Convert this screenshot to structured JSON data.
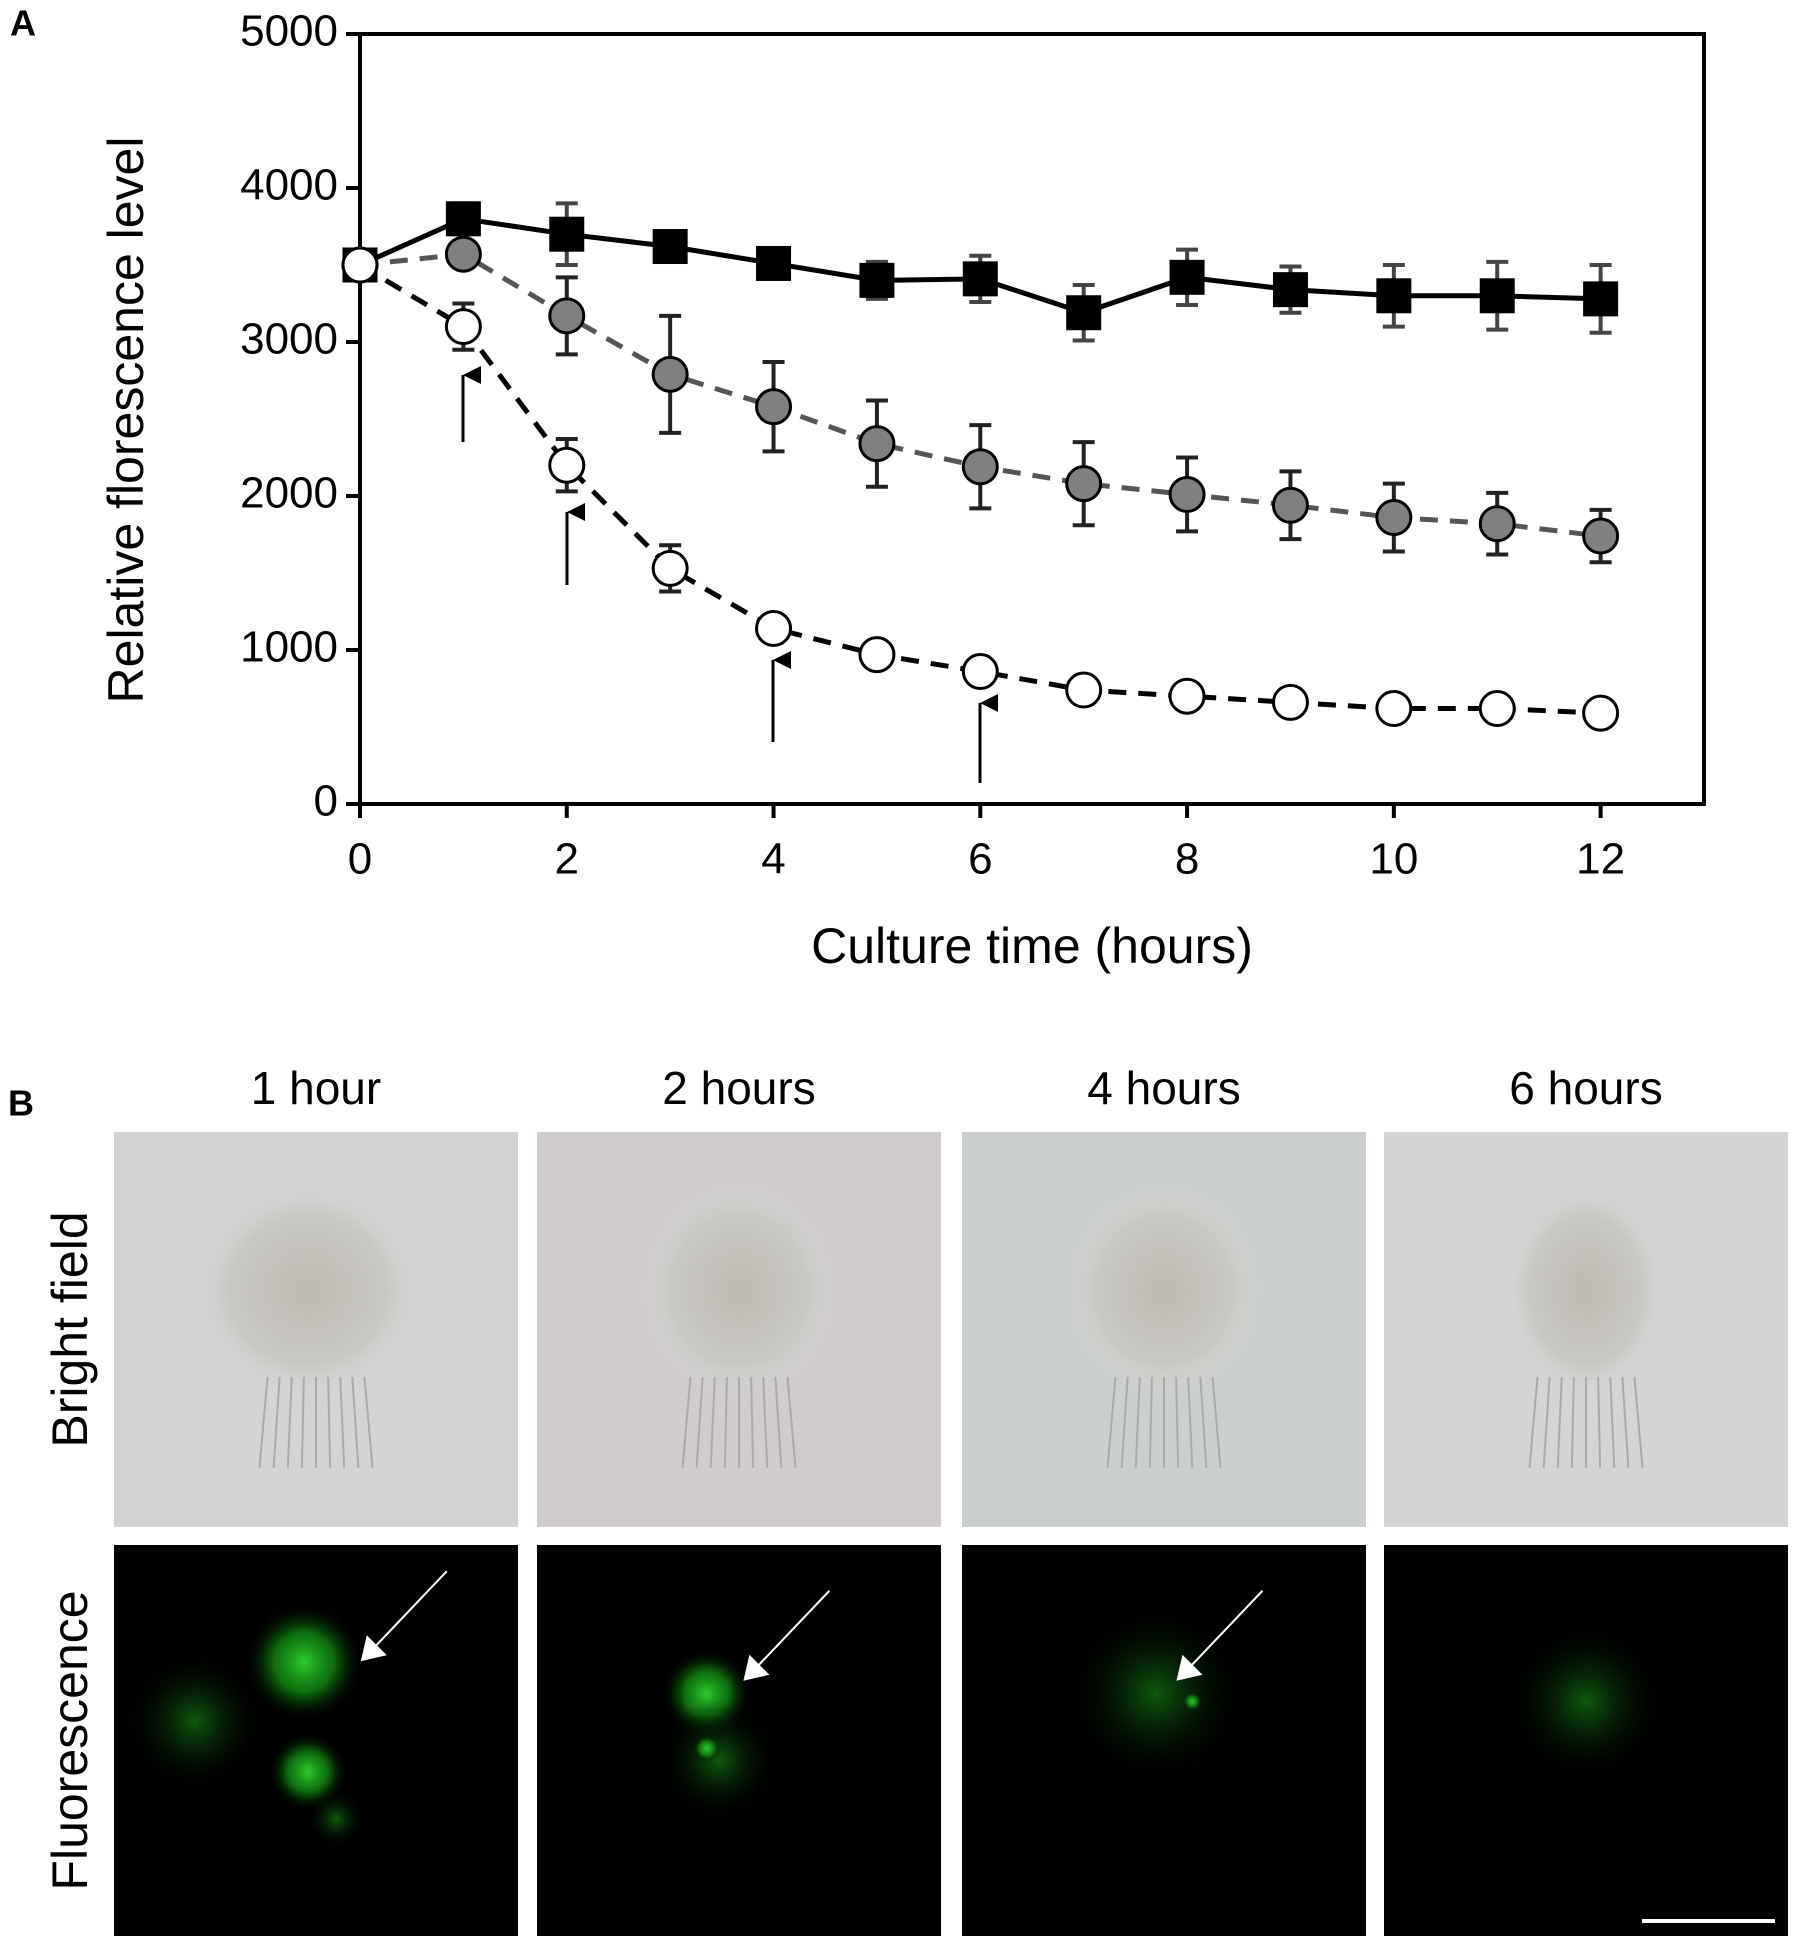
{
  "panel_labels": [
    "A",
    "B"
  ],
  "chart_data": {
    "type": "line",
    "x_label": "Culture time (hours)",
    "y_label": "Relative florescence level",
    "x": [
      0,
      1,
      2,
      3,
      4,
      5,
      6,
      7,
      8,
      9,
      10,
      11,
      12
    ],
    "xlim": [
      0,
      13
    ],
    "xticks": [
      0,
      2,
      4,
      6,
      8,
      10,
      12
    ],
    "ylim": [
      0,
      5000
    ],
    "yticks": [
      0,
      1000,
      2000,
      3000,
      4000,
      5000
    ],
    "grid": false,
    "series": [
      {
        "color": "#000000",
        "marker": "square",
        "marker_fill": "#000000",
        "line_style": "solid",
        "values": [
          3500,
          3800,
          3700,
          3620,
          3510,
          3400,
          3410,
          3190,
          3420,
          3340,
          3300,
          3300,
          3280
        ],
        "errors": [
          null,
          100,
          200,
          80,
          100,
          120,
          150,
          180,
          180,
          150,
          200,
          220,
          220
        ]
      },
      {
        "color": "#555555",
        "marker": "circle",
        "marker_fill": "#808080",
        "line_style": "dashed",
        "values": [
          3500,
          3570,
          3170,
          2790,
          2580,
          2340,
          2190,
          2080,
          2010,
          1940,
          1860,
          1820,
          1740
        ],
        "errors": [
          null,
          60,
          250,
          380,
          290,
          280,
          270,
          270,
          240,
          220,
          220,
          200,
          170
        ]
      },
      {
        "color": "#000000",
        "marker": "circle",
        "marker_fill": "#ffffff",
        "line_style": "dashed",
        "values": [
          3500,
          3100,
          2200,
          1530,
          1140,
          970,
          860,
          740,
          700,
          660,
          620,
          620,
          590
        ],
        "errors": [
          null,
          150,
          170,
          150,
          null,
          null,
          null,
          null,
          null,
          null,
          null,
          null,
          null
        ]
      }
    ]
  },
  "images": {
    "columns": [
      "1 hour",
      "2 hours",
      "4 hours",
      "6 hours"
    ],
    "rows": [
      "Bright field",
      "Fluorescence"
    ]
  }
}
